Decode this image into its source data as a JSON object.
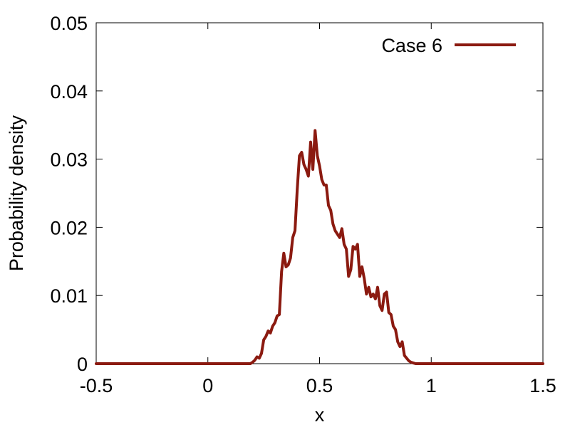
{
  "chart_data": {
    "type": "line",
    "title": "",
    "xlabel": "x",
    "ylabel": "Probability density",
    "xlim": [
      -0.5,
      1.5
    ],
    "ylim": [
      0,
      0.05
    ],
    "xticks": [
      -0.5,
      0,
      0.5,
      1,
      1.5
    ],
    "xtick_labels": [
      "-0.5",
      "0",
      "0.5",
      "1",
      "1.5"
    ],
    "yticks": [
      0,
      0.01,
      0.02,
      0.03,
      0.04,
      0.05
    ],
    "ytick_labels": [
      "0",
      "0.01",
      "0.02",
      "0.03",
      "0.04",
      "0.05"
    ],
    "grid": false,
    "legend_position": "top-right",
    "series": [
      {
        "name": "Case 6",
        "color": "#8b1a10",
        "x": [
          -0.5,
          0.0,
          0.19,
          0.2,
          0.21,
          0.22,
          0.23,
          0.24,
          0.25,
          0.26,
          0.27,
          0.28,
          0.29,
          0.3,
          0.31,
          0.32,
          0.33,
          0.34,
          0.35,
          0.36,
          0.37,
          0.38,
          0.39,
          0.4,
          0.41,
          0.42,
          0.43,
          0.44,
          0.45,
          0.46,
          0.47,
          0.48,
          0.49,
          0.5,
          0.51,
          0.52,
          0.53,
          0.54,
          0.55,
          0.56,
          0.57,
          0.58,
          0.59,
          0.6,
          0.61,
          0.62,
          0.63,
          0.64,
          0.65,
          0.66,
          0.67,
          0.68,
          0.69,
          0.7,
          0.71,
          0.72,
          0.73,
          0.74,
          0.75,
          0.76,
          0.77,
          0.78,
          0.79,
          0.8,
          0.81,
          0.82,
          0.83,
          0.84,
          0.85,
          0.86,
          0.87,
          0.88,
          0.89,
          0.9,
          0.91,
          0.92,
          0.93,
          0.94,
          0.95,
          1.0,
          1.5
        ],
        "y": [
          0,
          0,
          0,
          0.0002,
          0.0005,
          0.001,
          0.0008,
          0.0015,
          0.0035,
          0.004,
          0.0048,
          0.0045,
          0.0055,
          0.006,
          0.007,
          0.0072,
          0.0135,
          0.0162,
          0.0142,
          0.0145,
          0.0155,
          0.0185,
          0.0195,
          0.0255,
          0.0305,
          0.031,
          0.0292,
          0.0285,
          0.0275,
          0.0325,
          0.0285,
          0.0342,
          0.0305,
          0.029,
          0.027,
          0.0262,
          0.0262,
          0.0232,
          0.0225,
          0.0205,
          0.0195,
          0.019,
          0.0185,
          0.0198,
          0.0175,
          0.0168,
          0.0128,
          0.0138,
          0.0172,
          0.0168,
          0.0175,
          0.0128,
          0.0142,
          0.0125,
          0.0102,
          0.0112,
          0.0098,
          0.0102,
          0.0095,
          0.0112,
          0.0085,
          0.0078,
          0.0102,
          0.0105,
          0.0075,
          0.0072,
          0.0055,
          0.005,
          0.0032,
          0.0025,
          0.0032,
          0.0012,
          0.0008,
          0.0004,
          0.0002,
          0.0001,
          0,
          0,
          0,
          0,
          0
        ]
      }
    ]
  }
}
